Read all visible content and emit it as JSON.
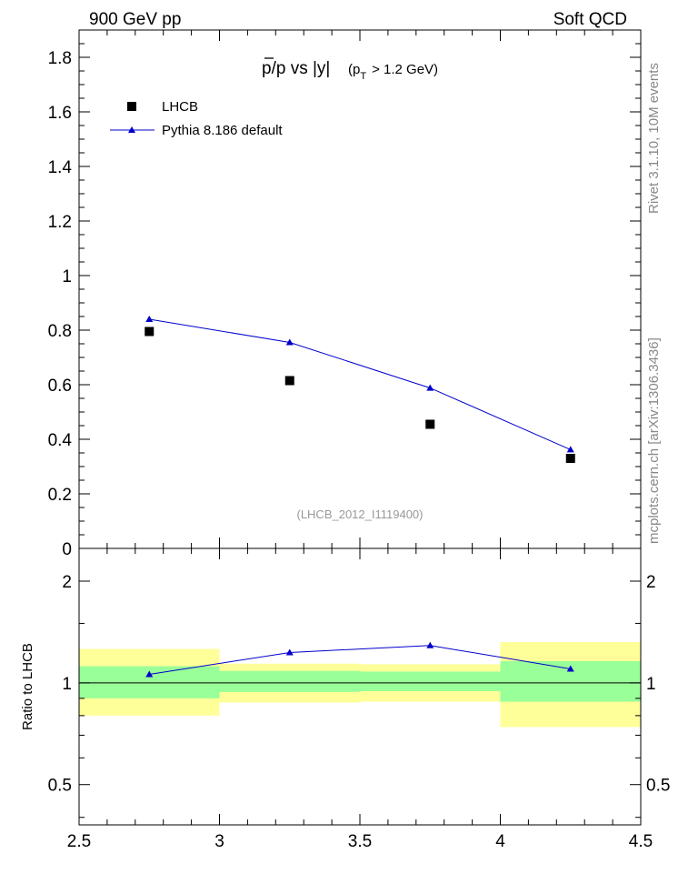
{
  "header": {
    "left_label": "900 GeV pp",
    "right_label": "Soft QCD"
  },
  "side_labels": {
    "rivet": "Rivet 3.1.10, 10M events",
    "mcplots": "mcplots.cern.ch [arXiv:1306.3436]"
  },
  "chart_data": [
    {
      "type": "scatter",
      "title_main": "p/p vs |y|",
      "title_sub_prefix": "(p",
      "title_sub_index": "T",
      "title_sub_suffix": "> 1.2 GeV)",
      "analysis_label": "(LHCB_2012_I1119400)",
      "xlim": [
        2.5,
        4.5
      ],
      "ylim": [
        0,
        1.9
      ],
      "y_ticks": [
        "0",
        "0.2",
        "0.4",
        "0.6",
        "0.8",
        "1",
        "1.2",
        "1.4",
        "1.6",
        "1.8"
      ],
      "y_tick_values": [
        0,
        0.2,
        0.4,
        0.6,
        0.8,
        1.0,
        1.2,
        1.4,
        1.6,
        1.8
      ],
      "legend_position": "top-left",
      "series": [
        {
          "name": "LHCB",
          "marker": "square",
          "color": "#000000",
          "x": [
            2.75,
            3.25,
            3.75,
            4.25
          ],
          "y": [
            0.795,
            0.615,
            0.455,
            0.33
          ]
        },
        {
          "name": "Pythia 8.186 default",
          "marker": "triangle",
          "color": "#0000cc",
          "x": [
            2.75,
            3.25,
            3.75,
            4.25
          ],
          "y": [
            0.84,
            0.755,
            0.588,
            0.362
          ]
        }
      ]
    },
    {
      "type": "line",
      "ylabel": "Ratio to LHCB",
      "xlim": [
        2.5,
        4.5
      ],
      "ylim": [
        0.38,
        2.5
      ],
      "y_scale": "log",
      "y_ticks": [
        "0.5",
        "1",
        "2"
      ],
      "y_tick_values": [
        0.5,
        1,
        2
      ],
      "x_ticks": [
        "2.5",
        "3",
        "3.5",
        "4",
        "4.5"
      ],
      "x_tick_values": [
        2.5,
        3,
        3.5,
        4,
        4.5
      ],
      "bands": {
        "bins": [
          [
            2.5,
            3.0
          ],
          [
            3.0,
            3.5
          ],
          [
            3.5,
            4.0
          ],
          [
            4.0,
            4.5
          ]
        ],
        "stat_lo": [
          0.9,
          0.94,
          0.945,
          0.88
        ],
        "stat_hi": [
          1.12,
          1.085,
          1.08,
          1.16
        ],
        "total_lo": [
          0.8,
          0.875,
          0.88,
          0.74
        ],
        "total_hi": [
          1.26,
          1.14,
          1.135,
          1.32
        ],
        "stat_color": "#99ff99",
        "total_color": "#ffff99"
      },
      "series": [
        {
          "name": "Pythia 8.186 default",
          "color": "#0000cc",
          "x": [
            2.75,
            3.25,
            3.75,
            4.25
          ],
          "y": [
            1.06,
            1.23,
            1.29,
            1.1
          ]
        }
      ]
    }
  ]
}
